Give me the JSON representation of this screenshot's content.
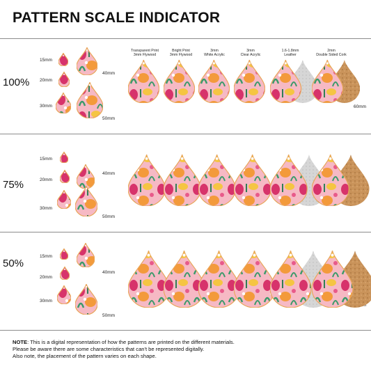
{
  "title": "PATTERN SCALE INDICATOR",
  "size_labels": [
    "15mm",
    "20mm",
    "30mm",
    "40mm",
    "50mm"
  ],
  "material_side_label": "60mm",
  "materials": [
    {
      "line1": "Transparent Print",
      "line2": "3mm Flywood"
    },
    {
      "line1": "Bright Print",
      "line2": "3mm Flywood"
    },
    {
      "line1": "3mm",
      "line2": "White Acrylic"
    },
    {
      "line1": "3mm",
      "line2": "Clear Acrylic"
    },
    {
      "line1": "1.6-1.8mm",
      "line2": "Leather"
    },
    {
      "line1": "2mm",
      "line2": "Double Sided Cork"
    }
  ],
  "rows": [
    {
      "scale": "100%"
    },
    {
      "scale": "75%"
    },
    {
      "scale": "50%"
    }
  ],
  "note": {
    "label": "NOTE",
    "line1": ": This is a digital representation of how the patterns are printed on the different materials.",
    "line2": "Please be aware there are some characteristics that can't be represented digitally.",
    "line3": "Also note, the placement of the pattern varies on each shape."
  },
  "colors": {
    "pink": "#f4a9b8",
    "hot_pink": "#d7336b",
    "orange": "#f39a3b",
    "yellow": "#f5c542",
    "green": "#3a9a6a",
    "cork": "#c9935a",
    "leather": "#cfcfcf",
    "wood": "#d9a25e"
  }
}
